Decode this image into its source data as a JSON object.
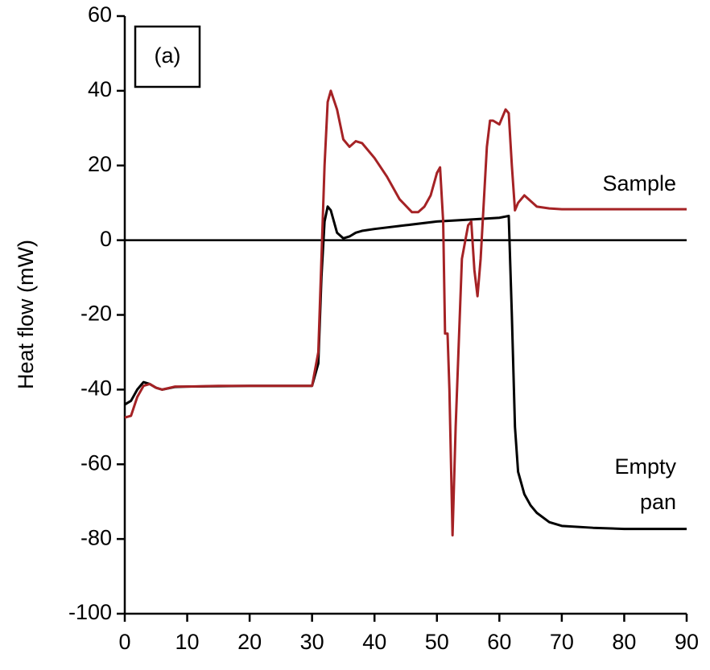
{
  "chart_data": {
    "type": "line",
    "ylabel": "Heat flow (mW)",
    "panel_label": "(a)",
    "xlim": [
      0,
      90
    ],
    "xticks": [
      0,
      10,
      20,
      30,
      40,
      50,
      60,
      70,
      80,
      90
    ],
    "ylim": [
      -100,
      60
    ],
    "yticks": [
      -100,
      -80,
      -60,
      -40,
      -20,
      0,
      20,
      40,
      60
    ],
    "series": [
      {
        "name": "Sample",
        "color": "#a52225",
        "x": [
          0,
          1,
          2,
          3,
          4,
          5,
          6,
          8,
          10,
          15,
          20,
          25,
          30,
          31,
          32,
          32.5,
          33,
          34,
          35,
          36,
          37,
          38,
          40,
          42,
          44,
          46,
          47,
          48,
          49,
          50,
          50.5,
          51,
          51.3,
          51.7,
          52,
          52.5,
          53,
          54,
          55,
          55.5,
          56,
          56.5,
          57,
          58,
          58.5,
          59,
          60,
          61,
          61.5,
          62,
          62.5,
          63,
          64,
          65,
          66,
          68,
          70,
          80,
          90
        ],
        "values": [
          -47.5,
          -47,
          -42,
          -39,
          -38.5,
          -39.5,
          -40,
          -39.2,
          -39.2,
          -39,
          -39,
          -39,
          -39,
          -30,
          20,
          37,
          40,
          35,
          27,
          25,
          26.5,
          26,
          22,
          17,
          11,
          7.5,
          7.5,
          9,
          12,
          18,
          19.5,
          5,
          -25,
          -25,
          -40,
          -79,
          -50,
          -5,
          4,
          5,
          -8,
          -15,
          -5,
          25,
          32,
          32,
          31,
          35,
          34,
          20,
          8,
          10,
          12,
          10.5,
          9,
          8.5,
          8.3,
          8.3,
          8.3
        ]
      },
      {
        "name": "Empty pan",
        "color": "#000000",
        "x": [
          0,
          1,
          2,
          3,
          4,
          5,
          6,
          8,
          10,
          20,
          30,
          31,
          31.5,
          32,
          32.5,
          33,
          34,
          35,
          36,
          37,
          38,
          40,
          45,
          50,
          55,
          60,
          61.5,
          62,
          62.5,
          63,
          64,
          65,
          66,
          68,
          70,
          75,
          80,
          90
        ],
        "values": [
          -44,
          -43,
          -40,
          -38,
          -38.5,
          -39.5,
          -40,
          -39.3,
          -39.2,
          -39,
          -39,
          -33,
          -10,
          5,
          9,
          8,
          2,
          0.5,
          1,
          2,
          2.5,
          3,
          4,
          5,
          5.5,
          6,
          6.5,
          -20,
          -50,
          -62,
          -68,
          -71,
          -73,
          -75.5,
          -76.5,
          -77,
          -77.3,
          -77.3
        ]
      }
    ],
    "series_label_lines": [
      [
        "Sample"
      ],
      [
        "Empty",
        "pan"
      ]
    ]
  }
}
